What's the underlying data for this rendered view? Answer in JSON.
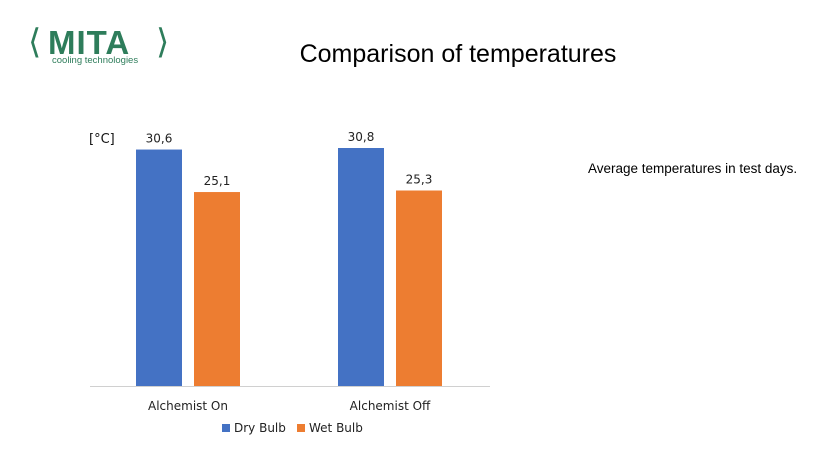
{
  "logo": {
    "name": "MITA",
    "tagline": "cooling technologies"
  },
  "title": "Comparison of temperatures",
  "note": "Average temperatures in test days.",
  "colors": {
    "dry": "#4472c4",
    "wet": "#ed7d31",
    "brand": "#2e7d5b"
  },
  "chart_data": {
    "type": "bar",
    "title": "",
    "ylabel": "[°C]",
    "xlabel": "",
    "categories": [
      "Alchemist On",
      "Alchemist Off"
    ],
    "series": [
      {
        "name": "Dry Bulb",
        "values": [
          30.6,
          30.8
        ],
        "labels": [
          "30,6",
          "30,8"
        ]
      },
      {
        "name": "Wet Bulb",
        "values": [
          25.1,
          25.3
        ],
        "labels": [
          "25,1",
          "25,3"
        ]
      }
    ],
    "ylim": [
      0,
      30.8
    ],
    "grid": false,
    "legend": "bottom"
  }
}
